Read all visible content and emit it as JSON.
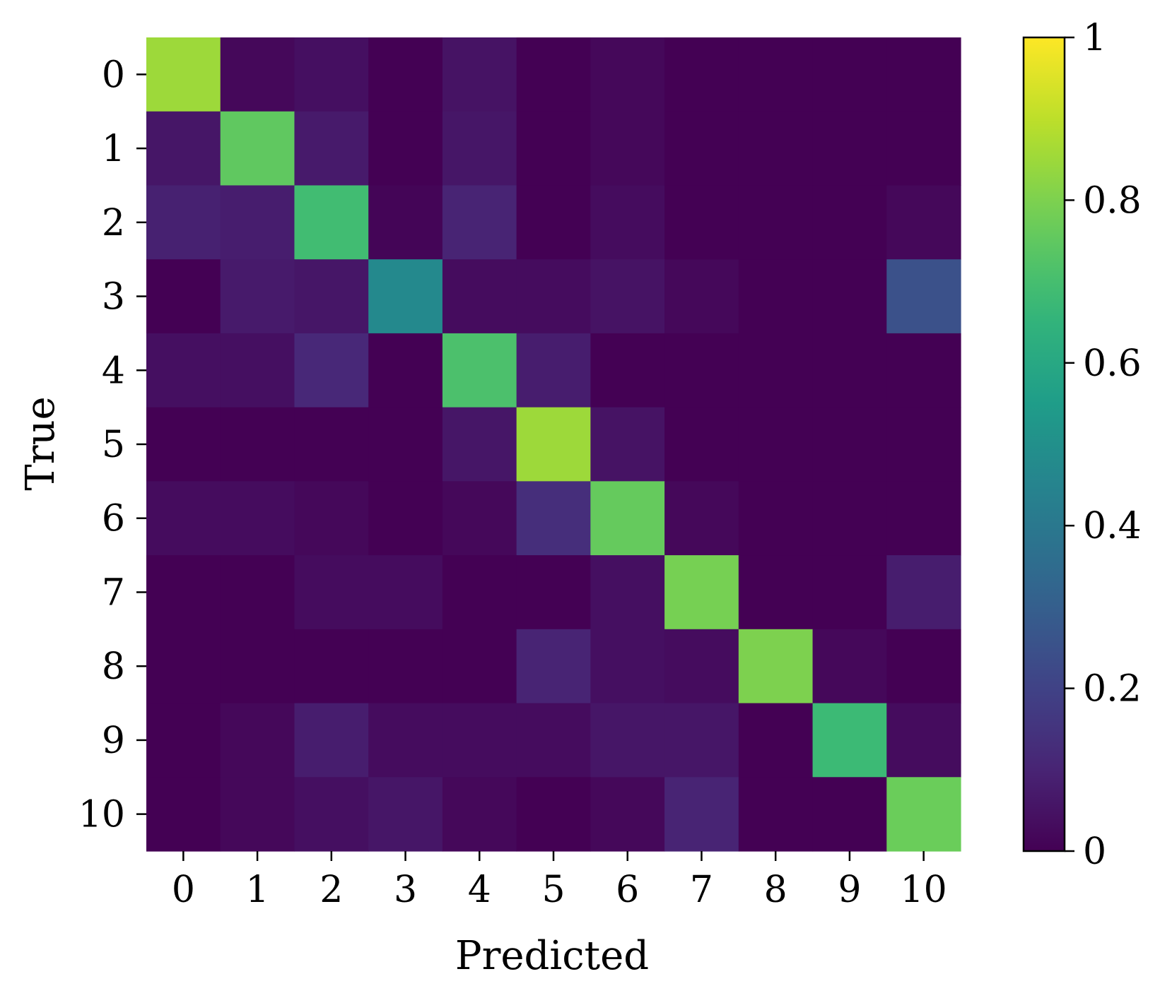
{
  "chart_data": {
    "type": "heatmap",
    "title": "",
    "xlabel": "Predicted",
    "ylabel": "True",
    "x_categories": [
      "0",
      "1",
      "2",
      "3",
      "4",
      "5",
      "6",
      "7",
      "8",
      "9",
      "10"
    ],
    "y_categories": [
      "0",
      "1",
      "2",
      "3",
      "4",
      "5",
      "6",
      "7",
      "8",
      "9",
      "10"
    ],
    "values": [
      [
        0.85,
        0.02,
        0.04,
        0.0,
        0.05,
        0.0,
        0.02,
        0.0,
        0.0,
        0.0,
        0.0
      ],
      [
        0.06,
        0.75,
        0.07,
        0.0,
        0.06,
        0.0,
        0.02,
        0.0,
        0.0,
        0.0,
        0.0
      ],
      [
        0.09,
        0.08,
        0.69,
        0.01,
        0.1,
        0.0,
        0.03,
        0.0,
        0.0,
        0.0,
        0.02
      ],
      [
        0.0,
        0.07,
        0.06,
        0.47,
        0.03,
        0.03,
        0.05,
        0.02,
        0.0,
        0.0,
        0.25
      ],
      [
        0.04,
        0.04,
        0.11,
        0.0,
        0.71,
        0.08,
        0.0,
        0.0,
        0.0,
        0.0,
        0.0
      ],
      [
        0.0,
        0.0,
        0.0,
        0.0,
        0.06,
        0.85,
        0.05,
        0.0,
        0.0,
        0.0,
        0.0
      ],
      [
        0.03,
        0.03,
        0.02,
        0.0,
        0.02,
        0.13,
        0.76,
        0.02,
        0.0,
        0.0,
        0.0
      ],
      [
        0.0,
        0.0,
        0.03,
        0.03,
        0.0,
        0.0,
        0.04,
        0.79,
        0.0,
        0.0,
        0.08
      ],
      [
        0.0,
        0.0,
        0.0,
        0.0,
        0.0,
        0.1,
        0.04,
        0.03,
        0.8,
        0.02,
        0.0
      ],
      [
        0.0,
        0.02,
        0.08,
        0.03,
        0.03,
        0.03,
        0.06,
        0.06,
        0.0,
        0.68,
        0.03
      ],
      [
        0.0,
        0.02,
        0.04,
        0.06,
        0.02,
        0.0,
        0.02,
        0.1,
        0.0,
        0.0,
        0.77
      ]
    ],
    "vmin": 0,
    "vmax": 1,
    "colormap": "viridis",
    "colorbar": {
      "ticks": [
        0,
        0.2,
        0.4,
        0.6,
        0.8,
        1
      ],
      "tick_labels": [
        "0",
        "0.2",
        "0.4",
        "0.6",
        "0.8",
        "1"
      ]
    },
    "grid": false,
    "legend": "colorbar-right"
  }
}
